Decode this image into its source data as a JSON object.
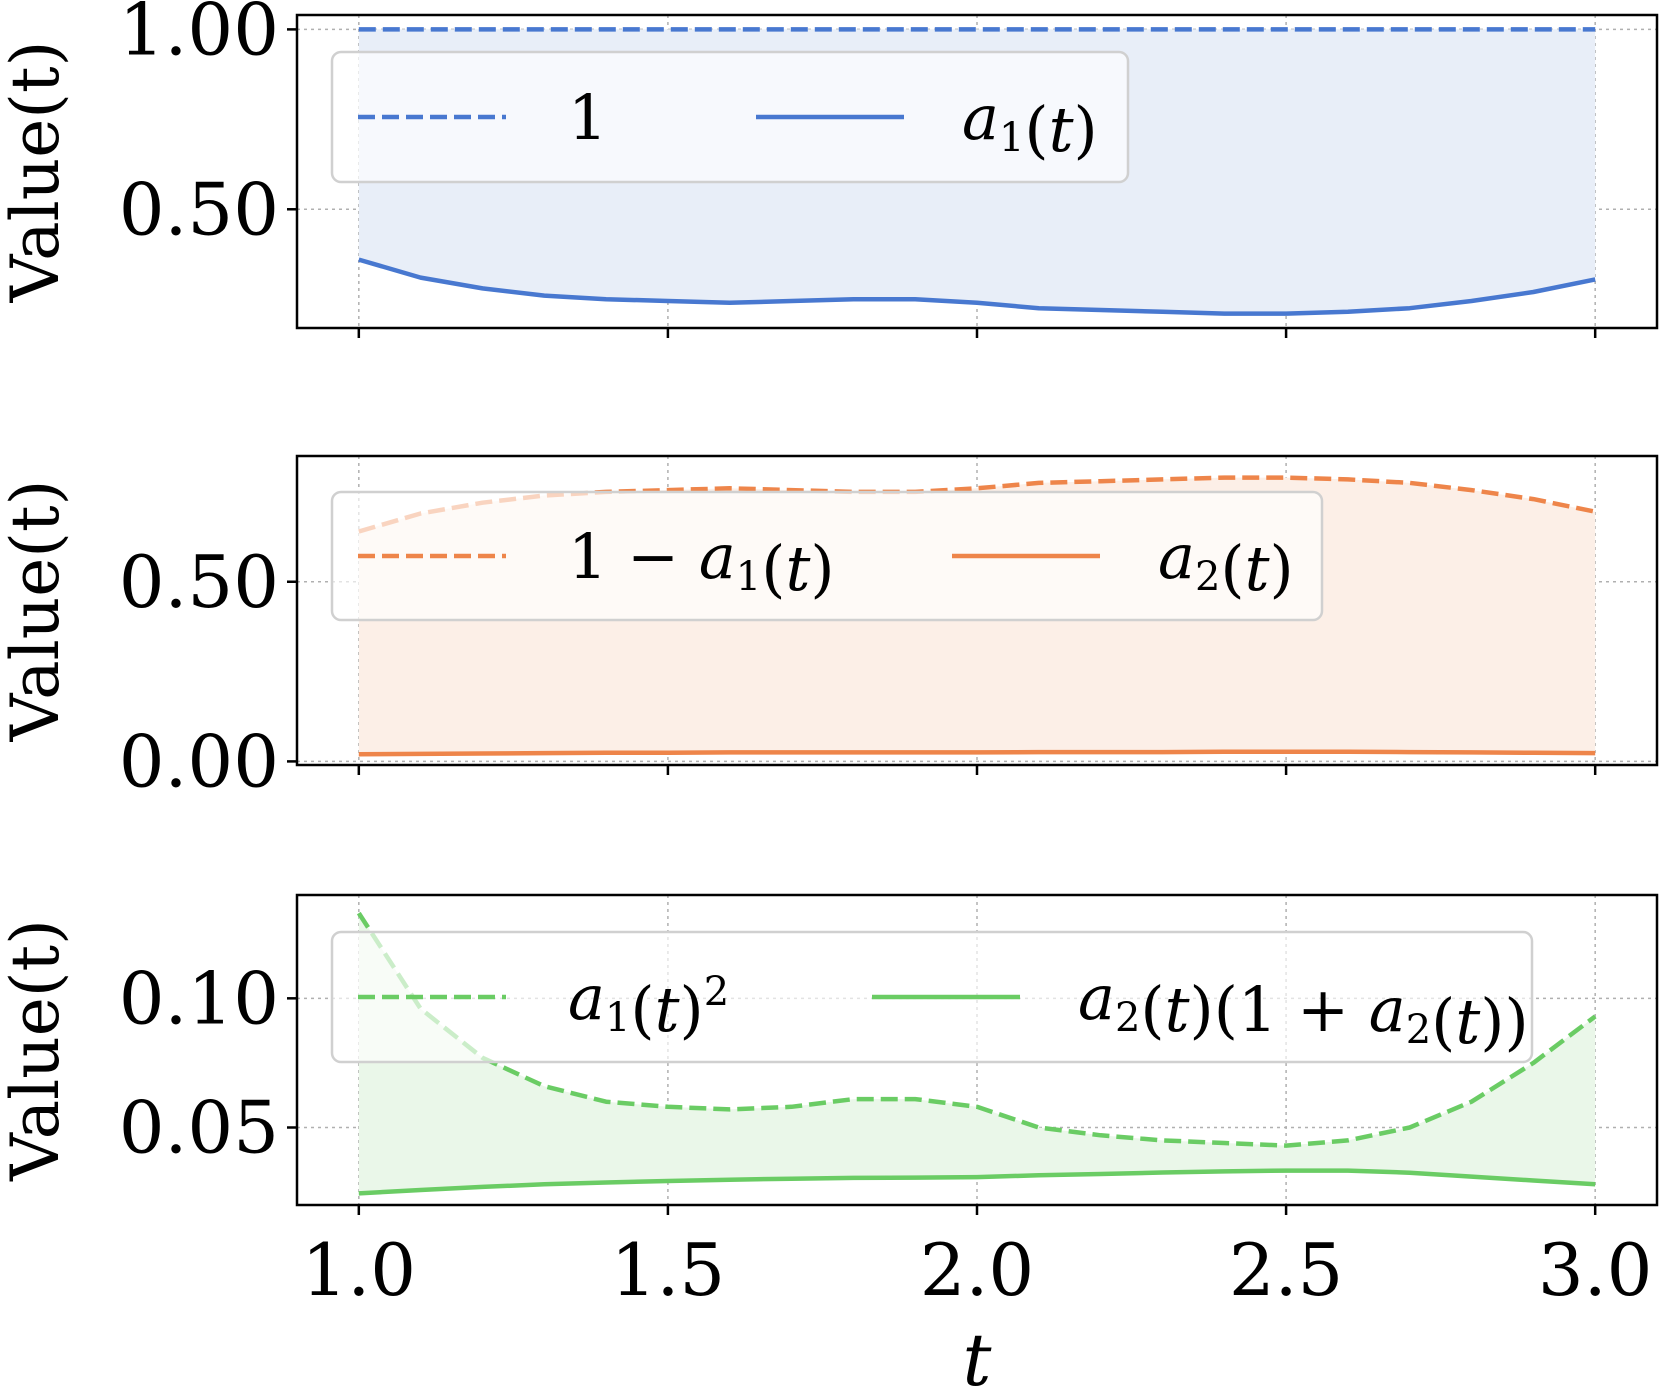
{
  "chart_data": [
    {
      "type": "line",
      "ylabel": "Value(t)",
      "ylim": [
        0.17,
        1.04
      ],
      "yticks": [
        0.5,
        1.0
      ],
      "ytick_labels": [
        "0.50",
        "1.00"
      ],
      "colors": {
        "main": "#4878d0",
        "fill": "#e8eef8"
      },
      "x": [
        1.0,
        1.1,
        1.2,
        1.3,
        1.4,
        1.5,
        1.6,
        1.7,
        1.8,
        1.9,
        2.0,
        2.1,
        2.2,
        2.3,
        2.4,
        2.5,
        2.6,
        2.7,
        2.8,
        2.9,
        3.0
      ],
      "series": [
        {
          "name": "1",
          "style": "dashed",
          "values": [
            1,
            1,
            1,
            1,
            1,
            1,
            1,
            1,
            1,
            1,
            1,
            1,
            1,
            1,
            1,
            1,
            1,
            1,
            1,
            1,
            1
          ]
        },
        {
          "name": "a1(t)",
          "style": "solid",
          "values": [
            0.36,
            0.31,
            0.28,
            0.26,
            0.25,
            0.245,
            0.24,
            0.245,
            0.25,
            0.25,
            0.24,
            0.225,
            0.22,
            0.215,
            0.21,
            0.21,
            0.215,
            0.225,
            0.245,
            0.27,
            0.305
          ]
        }
      ],
      "legend": {
        "entries": [
          {
            "label": "1"
          },
          {
            "label": "a1(t)",
            "base": "a",
            "sub": "1",
            "tail": "(t)"
          }
        ]
      }
    },
    {
      "type": "line",
      "ylabel": "Value(t)",
      "ylim": [
        -0.01,
        0.85
      ],
      "yticks": [
        0.0,
        0.5
      ],
      "ytick_labels": [
        "0.00",
        "0.50"
      ],
      "colors": {
        "main": "#ee854a",
        "fill": "#fcefe7"
      },
      "x": [
        1.0,
        1.1,
        1.2,
        1.3,
        1.4,
        1.5,
        1.6,
        1.7,
        1.8,
        1.9,
        2.0,
        2.1,
        2.2,
        2.3,
        2.4,
        2.5,
        2.6,
        2.7,
        2.8,
        2.9,
        3.0
      ],
      "series": [
        {
          "name": "1 − a1(t)",
          "style": "dashed",
          "values": [
            0.64,
            0.69,
            0.72,
            0.74,
            0.75,
            0.755,
            0.76,
            0.755,
            0.75,
            0.75,
            0.76,
            0.775,
            0.78,
            0.785,
            0.79,
            0.79,
            0.785,
            0.775,
            0.755,
            0.73,
            0.695
          ]
        },
        {
          "name": "a2(t)",
          "style": "solid",
          "values": [
            0.02,
            0.021,
            0.022,
            0.023,
            0.024,
            0.024,
            0.025,
            0.025,
            0.025,
            0.025,
            0.025,
            0.026,
            0.026,
            0.026,
            0.027,
            0.027,
            0.027,
            0.026,
            0.025,
            0.024,
            0.023
          ]
        }
      ],
      "legend": {
        "entries": [
          {
            "label": "1 − a1(t)",
            "pre": "1 − ",
            "base": "a",
            "sub": "1",
            "tail": "(t)"
          },
          {
            "label": "a2(t)",
            "base": "a",
            "sub": "2",
            "tail": "(t)"
          }
        ]
      }
    },
    {
      "type": "line",
      "ylabel": "Value(t)",
      "ylim": [
        0.02,
        0.14
      ],
      "yticks": [
        0.05,
        0.1
      ],
      "ytick_labels": [
        "0.05",
        "0.10"
      ],
      "colors": {
        "main": "#6acc64",
        "fill": "#eaf7e9"
      },
      "x": [
        1.0,
        1.1,
        1.2,
        1.3,
        1.4,
        1.5,
        1.6,
        1.7,
        1.8,
        1.9,
        2.0,
        2.1,
        2.2,
        2.3,
        2.4,
        2.5,
        2.6,
        2.7,
        2.8,
        2.9,
        3.0
      ],
      "series": [
        {
          "name": "a1(t)^2",
          "style": "dashed",
          "values": [
            0.133,
            0.096,
            0.077,
            0.066,
            0.06,
            0.058,
            0.057,
            0.058,
            0.061,
            0.061,
            0.058,
            0.05,
            0.047,
            0.045,
            0.044,
            0.043,
            0.045,
            0.05,
            0.06,
            0.075,
            0.093
          ]
        },
        {
          "name": "a2(t)(1 + a2(t))",
          "style": "solid",
          "values": [
            0.0245,
            0.0258,
            0.027,
            0.028,
            0.0287,
            0.0293,
            0.0298,
            0.0302,
            0.0305,
            0.0306,
            0.0308,
            0.0315,
            0.032,
            0.0326,
            0.033,
            0.0333,
            0.0333,
            0.0325,
            0.031,
            0.0295,
            0.028
          ]
        }
      ],
      "legend": {
        "entries": [
          {
            "label": "a1(t)^2",
            "base": "a",
            "sub": "1",
            "tail": "(t)",
            "sup": "2"
          },
          {
            "label": "a2(t)(1 + a2(t))",
            "base": "a",
            "sub": "2",
            "tail": "(t)(1 + ",
            "base2": "a",
            "sub2": "2",
            "tail2": "(t))"
          }
        ]
      }
    }
  ],
  "xaxis": {
    "label": "t",
    "xlim": [
      0.9,
      3.1
    ],
    "ticks": [
      1.0,
      1.5,
      2.0,
      2.5,
      3.0
    ],
    "tick_labels": [
      "1.0",
      "1.5",
      "2.0",
      "2.5",
      "3.0"
    ]
  }
}
